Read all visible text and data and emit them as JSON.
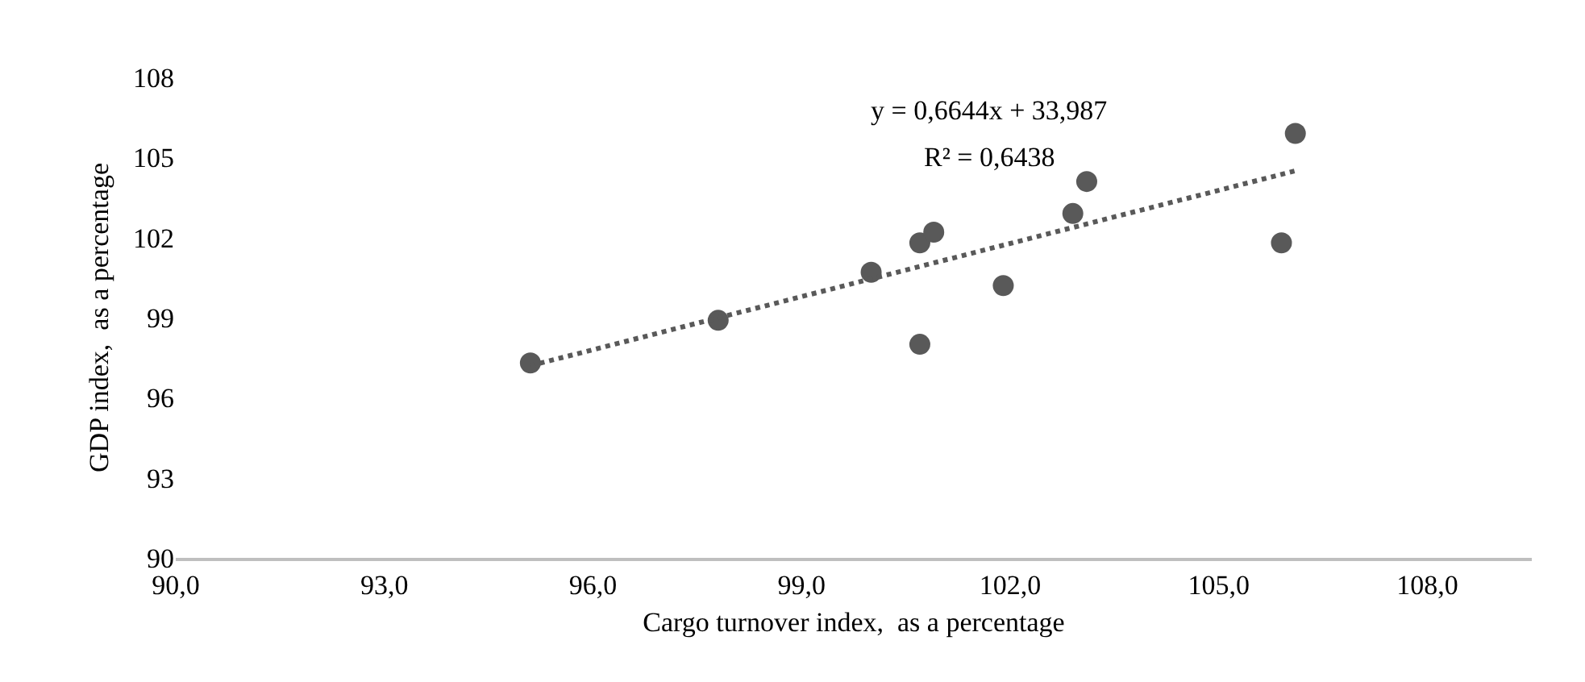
{
  "chart_data": {
    "type": "scatter",
    "xlabel": "Cargo turnover index,  as a percentage",
    "ylabel": "GDP index,  as a percentage",
    "annotations": [
      "y = 0,6644x + 33,987",
      "R² = 0,6438"
    ],
    "series": [
      {
        "color": "#595959",
        "marker": "circle",
        "x": [
          95.1,
          97.8,
          100.0,
          100.7,
          100.9,
          100.7,
          101.9,
          102.9,
          103.1,
          105.9,
          106.1
        ],
        "values": [
          97.3,
          98.9,
          100.7,
          101.8,
          102.2,
          98.0,
          100.2,
          102.9,
          104.1,
          101.8,
          105.9
        ]
      },
      {
        "type": "line",
        "color": "#595959",
        "line_style": "dotted",
        "marker": "none",
        "x": [
          95.1,
          106.1
        ],
        "values": [
          97.2,
          104.5
        ]
      }
    ],
    "xlim": [
      90,
      109.5
    ],
    "xticks": [
      {
        "value": 90,
        "label": "90,0"
      },
      {
        "value": 93,
        "label": "93,0"
      },
      {
        "value": 96,
        "label": "96,0"
      },
      {
        "value": 99,
        "label": "99,0"
      },
      {
        "value": 102,
        "label": "102,0"
      },
      {
        "value": 105,
        "label": "105,0"
      },
      {
        "value": 108,
        "label": "108,0"
      }
    ],
    "ylim": [
      90,
      108
    ],
    "yticks": [
      90,
      93,
      96,
      99,
      102,
      105,
      108
    ],
    "grid": false
  }
}
